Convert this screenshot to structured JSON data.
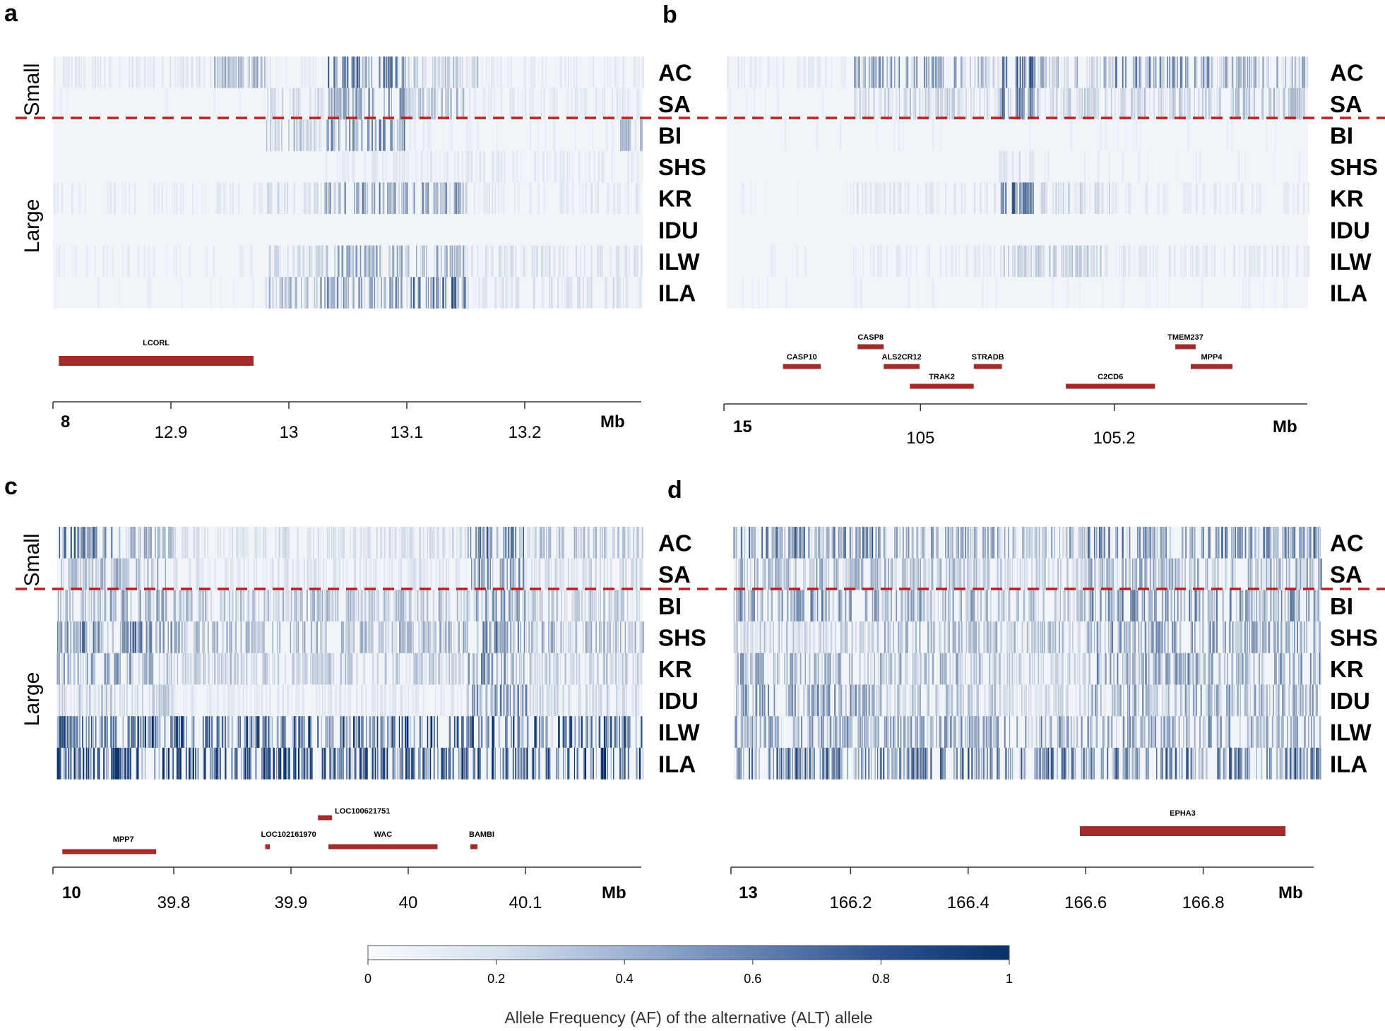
{
  "colors": {
    "low": "#f6f9fd",
    "high": "#08306b",
    "gene": "#a52a2a",
    "divider": "#b22222"
  },
  "populations": [
    "AC",
    "SA",
    "BI",
    "SHS",
    "KR",
    "IDU",
    "ILW",
    "ILA"
  ],
  "groups": {
    "small": "Small",
    "large": "Large"
  },
  "colorbar": {
    "ticks": [
      "0",
      "0.2",
      "0.4",
      "0.6",
      "0.8",
      "1"
    ],
    "title": "Allele Frequency (AF) of the alternative (ALT) allele"
  },
  "chart_data": [
    {
      "type": "heatmap",
      "panel": "a",
      "chromosome": "8",
      "unit": "Mb",
      "x_range": [
        12.8,
        13.3
      ],
      "xticks": [
        {
          "value": 12.9,
          "label": "12.9"
        },
        {
          "value": 13.0,
          "label": "13"
        },
        {
          "value": 13.1,
          "label": "13.1"
        },
        {
          "value": 13.2,
          "label": "13.2"
        }
      ],
      "row_groups": {
        "Small": [
          "AC",
          "SA"
        ],
        "Large": [
          "BI",
          "SHS",
          "KR",
          "IDU",
          "ILW",
          "ILA"
        ]
      },
      "genes": [
        {
          "name": "LCORL",
          "start": 12.805,
          "end": 12.97
        }
      ],
      "af_profile": [
        {
          "pop": "AC",
          "regions": [
            [
              12.8,
              12.93,
              0.08
            ],
            [
              12.93,
              12.98,
              0.32
            ],
            [
              12.98,
              13.03,
              0.05
            ],
            [
              13.03,
              13.1,
              0.58
            ],
            [
              13.1,
              13.16,
              0.2
            ],
            [
              13.16,
              13.3,
              0.06
            ]
          ]
        },
        {
          "pop": "SA",
          "regions": [
            [
              12.8,
              12.98,
              0.04
            ],
            [
              12.98,
              13.03,
              0.15
            ],
            [
              13.03,
              13.1,
              0.42
            ],
            [
              13.1,
              13.15,
              0.25
            ],
            [
              13.15,
              13.3,
              0.07
            ]
          ]
        },
        {
          "pop": "BI",
          "regions": [
            [
              12.8,
              12.98,
              0.03
            ],
            [
              12.98,
              13.03,
              0.22
            ],
            [
              13.03,
              13.1,
              0.45
            ],
            [
              13.1,
              13.28,
              0.05
            ],
            [
              13.28,
              13.3,
              0.25
            ]
          ]
        },
        {
          "pop": "SHS",
          "regions": [
            [
              12.8,
              13.03,
              0.03
            ],
            [
              13.03,
              13.3,
              0.07
            ]
          ]
        },
        {
          "pop": "KR",
          "regions": [
            [
              12.8,
              12.98,
              0.06
            ],
            [
              12.98,
              13.03,
              0.12
            ],
            [
              13.03,
              13.1,
              0.4
            ],
            [
              13.1,
              13.15,
              0.38
            ],
            [
              13.15,
              13.3,
              0.07
            ]
          ]
        },
        {
          "pop": "IDU",
          "regions": [
            [
              12.8,
              13.3,
              0.03
            ]
          ]
        },
        {
          "pop": "ILW",
          "regions": [
            [
              12.8,
              12.98,
              0.05
            ],
            [
              12.98,
              13.03,
              0.15
            ],
            [
              13.03,
              13.1,
              0.35
            ],
            [
              13.1,
              13.15,
              0.3
            ],
            [
              13.15,
              13.3,
              0.1
            ]
          ]
        },
        {
          "pop": "ILA",
          "regions": [
            [
              12.8,
              12.98,
              0.04
            ],
            [
              12.98,
              13.03,
              0.3
            ],
            [
              13.03,
              13.1,
              0.4
            ],
            [
              13.1,
              13.15,
              0.6
            ],
            [
              13.15,
              13.3,
              0.1
            ]
          ]
        }
      ]
    },
    {
      "type": "heatmap",
      "panel": "b",
      "chromosome": "15",
      "unit": "Mb",
      "x_range": [
        104.8,
        105.4
      ],
      "xticks": [
        {
          "value": 105.0,
          "label": "105"
        },
        {
          "value": 105.2,
          "label": "105.2"
        }
      ],
      "row_groups": {
        "Small": [
          "AC",
          "SA"
        ],
        "Large": [
          "BI",
          "SHS",
          "KR",
          "IDU",
          "ILW",
          "ILA"
        ]
      },
      "genes": [
        {
          "name": "CASP8",
          "start": 104.935,
          "end": 104.962
        },
        {
          "name": "ALS2CR12",
          "start": 104.962,
          "end": 104.999
        },
        {
          "name": "STRADB",
          "start": 105.055,
          "end": 105.084
        },
        {
          "name": "CASP10",
          "start": 104.858,
          "end": 104.897
        },
        {
          "name": "TRAK2",
          "start": 104.989,
          "end": 105.055
        },
        {
          "name": "C2CD6",
          "start": 105.15,
          "end": 105.242
        },
        {
          "name": "TMEM237",
          "start": 105.263,
          "end": 105.284
        },
        {
          "name": "MPP4",
          "start": 105.279,
          "end": 105.322
        }
      ],
      "af_profile": [
        {
          "pop": "AC",
          "regions": [
            [
              104.8,
              104.93,
              0.06
            ],
            [
              104.93,
              105.05,
              0.38
            ],
            [
              105.05,
              105.08,
              0.22
            ],
            [
              105.08,
              105.12,
              0.55
            ],
            [
              105.12,
              105.2,
              0.28
            ],
            [
              105.2,
              105.3,
              0.45
            ],
            [
              105.3,
              105.4,
              0.3
            ]
          ]
        },
        {
          "pop": "SA",
          "regions": [
            [
              104.8,
              104.93,
              0.04
            ],
            [
              104.93,
              105.05,
              0.18
            ],
            [
              105.05,
              105.08,
              0.12
            ],
            [
              105.08,
              105.12,
              0.5
            ],
            [
              105.12,
              105.3,
              0.18
            ],
            [
              105.3,
              105.4,
              0.25
            ]
          ]
        },
        {
          "pop": "BI",
          "regions": [
            [
              104.8,
              105.4,
              0.04
            ]
          ]
        },
        {
          "pop": "SHS",
          "regions": [
            [
              104.8,
              105.08,
              0.03
            ],
            [
              105.08,
              105.12,
              0.1
            ],
            [
              105.12,
              105.4,
              0.04
            ]
          ]
        },
        {
          "pop": "KR",
          "regions": [
            [
              104.8,
              104.93,
              0.04
            ],
            [
              104.93,
              105.08,
              0.08
            ],
            [
              105.08,
              105.12,
              0.55
            ],
            [
              105.12,
              105.2,
              0.15
            ],
            [
              105.2,
              105.4,
              0.06
            ]
          ]
        },
        {
          "pop": "IDU",
          "regions": [
            [
              104.8,
              105.4,
              0.03
            ]
          ]
        },
        {
          "pop": "ILW",
          "regions": [
            [
              104.8,
              104.93,
              0.04
            ],
            [
              104.93,
              105.08,
              0.06
            ],
            [
              105.08,
              105.2,
              0.2
            ],
            [
              105.2,
              105.4,
              0.08
            ]
          ]
        },
        {
          "pop": "ILA",
          "regions": [
            [
              104.8,
              105.4,
              0.04
            ]
          ]
        }
      ]
    },
    {
      "type": "heatmap",
      "panel": "c",
      "chromosome": "10",
      "unit": "Mb",
      "x_range": [
        39.7,
        40.2
      ],
      "xticks": [
        {
          "value": 39.8,
          "label": "39.8"
        },
        {
          "value": 39.9,
          "label": "39.9"
        },
        {
          "value": 40.0,
          "label": "40"
        },
        {
          "value": 40.1,
          "label": "40.1"
        }
      ],
      "row_groups": {
        "Small": [
          "AC",
          "SA"
        ],
        "Large": [
          "BI",
          "SHS",
          "KR",
          "IDU",
          "ILW",
          "ILA"
        ]
      },
      "genes": [
        {
          "name": "LOC100621751",
          "start": 39.923,
          "end": 39.935
        },
        {
          "name": "MPP7",
          "start": 39.705,
          "end": 39.785
        },
        {
          "name": "LOC102161970",
          "start": 39.878,
          "end": 39.882
        },
        {
          "name": "WAC",
          "start": 39.932,
          "end": 40.025
        },
        {
          "name": "BAMBI",
          "start": 40.053,
          "end": 40.059
        }
      ],
      "af_profile": [
        {
          "pop": "AC",
          "regions": [
            [
              39.7,
              39.75,
              0.55
            ],
            [
              39.75,
              39.8,
              0.3
            ],
            [
              39.8,
              40.05,
              0.12
            ],
            [
              40.05,
              40.1,
              0.55
            ],
            [
              40.1,
              40.2,
              0.25
            ]
          ]
        },
        {
          "pop": "SA",
          "regions": [
            [
              39.7,
              39.8,
              0.3
            ],
            [
              39.8,
              40.05,
              0.1
            ],
            [
              40.05,
              40.1,
              0.45
            ],
            [
              40.1,
              40.2,
              0.15
            ]
          ]
        },
        {
          "pop": "BI",
          "regions": [
            [
              39.7,
              39.8,
              0.35
            ],
            [
              39.8,
              40.05,
              0.25
            ],
            [
              40.05,
              40.1,
              0.4
            ],
            [
              40.1,
              40.2,
              0.2
            ]
          ]
        },
        {
          "pop": "SHS",
          "regions": [
            [
              39.7,
              39.8,
              0.5
            ],
            [
              39.8,
              40.05,
              0.3
            ],
            [
              40.05,
              40.1,
              0.5
            ],
            [
              40.1,
              40.2,
              0.3
            ]
          ]
        },
        {
          "pop": "KR",
          "regions": [
            [
              39.7,
              39.8,
              0.35
            ],
            [
              39.8,
              40.05,
              0.2
            ],
            [
              40.05,
              40.1,
              0.45
            ],
            [
              40.1,
              40.2,
              0.2
            ]
          ]
        },
        {
          "pop": "IDU",
          "regions": [
            [
              39.7,
              39.8,
              0.2
            ],
            [
              39.8,
              40.05,
              0.08
            ],
            [
              40.05,
              40.1,
              0.45
            ],
            [
              40.1,
              40.2,
              0.15
            ]
          ]
        },
        {
          "pop": "ILW",
          "regions": [
            [
              39.7,
              40.2,
              0.65
            ]
          ]
        },
        {
          "pop": "ILA",
          "regions": [
            [
              39.7,
              40.2,
              0.72
            ]
          ]
        }
      ]
    },
    {
      "type": "heatmap",
      "panel": "d",
      "chromosome": "13",
      "unit": "Mb",
      "x_range": [
        166.0,
        167.0
      ],
      "xticks": [
        {
          "value": 166.2,
          "label": "166.2"
        },
        {
          "value": 166.4,
          "label": "166.4"
        },
        {
          "value": 166.6,
          "label": "166.6"
        },
        {
          "value": 166.8,
          "label": "166.8"
        }
      ],
      "row_groups": {
        "Small": [
          "AC",
          "SA"
        ],
        "Large": [
          "BI",
          "SHS",
          "KR",
          "IDU",
          "ILW",
          "ILA"
        ]
      },
      "genes": [
        {
          "name": "EPHA3",
          "start": 166.59,
          "end": 166.94
        }
      ],
      "af_profile": [
        {
          "pop": "AC",
          "regions": [
            [
              166.0,
              166.25,
              0.55
            ],
            [
              166.25,
              166.45,
              0.4
            ],
            [
              166.45,
              166.6,
              0.3
            ],
            [
              166.6,
              167.0,
              0.5
            ]
          ]
        },
        {
          "pop": "SA",
          "regions": [
            [
              166.0,
              166.25,
              0.3
            ],
            [
              166.25,
              166.45,
              0.3
            ],
            [
              166.45,
              166.6,
              0.2
            ],
            [
              166.6,
              167.0,
              0.35
            ]
          ]
        },
        {
          "pop": "BI",
          "regions": [
            [
              166.0,
              166.25,
              0.4
            ],
            [
              166.25,
              166.45,
              0.35
            ],
            [
              166.45,
              166.6,
              0.25
            ],
            [
              166.6,
              167.0,
              0.45
            ]
          ]
        },
        {
          "pop": "SHS",
          "regions": [
            [
              166.0,
              166.25,
              0.2
            ],
            [
              166.25,
              166.45,
              0.3
            ],
            [
              166.45,
              166.6,
              0.25
            ],
            [
              166.6,
              167.0,
              0.4
            ]
          ]
        },
        {
          "pop": "KR",
          "regions": [
            [
              166.0,
              166.25,
              0.35
            ],
            [
              166.25,
              166.45,
              0.3
            ],
            [
              166.45,
              166.6,
              0.2
            ],
            [
              166.6,
              167.0,
              0.4
            ]
          ]
        },
        {
          "pop": "IDU",
          "regions": [
            [
              166.0,
              166.25,
              0.45
            ],
            [
              166.25,
              166.45,
              0.25
            ],
            [
              166.45,
              166.6,
              0.15
            ],
            [
              166.6,
              167.0,
              0.35
            ]
          ]
        },
        {
          "pop": "ILW",
          "regions": [
            [
              166.0,
              167.0,
              0.4
            ]
          ]
        },
        {
          "pop": "ILA",
          "regions": [
            [
              166.0,
              167.0,
              0.55
            ]
          ]
        }
      ]
    }
  ]
}
